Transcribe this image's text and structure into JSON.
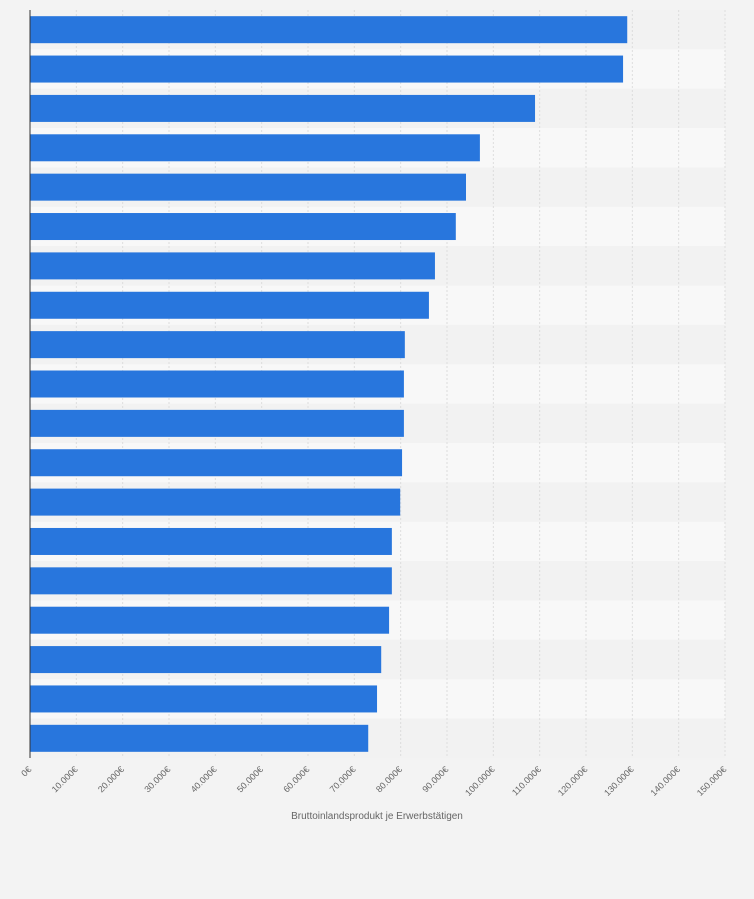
{
  "chart_data": {
    "type": "bar",
    "orientation": "horizontal",
    "title": "",
    "xlabel": "Bruttoinlandsprodukt je Erwerbstätigen",
    "ylabel": "",
    "xlim": [
      0,
      150000
    ],
    "xticks": [
      0,
      10000,
      20000,
      30000,
      40000,
      50000,
      60000,
      70000,
      80000,
      90000,
      100000,
      110000,
      120000,
      130000,
      140000,
      150000
    ],
    "xtick_labels": [
      "0€",
      "10.000€",
      "20.000€",
      "30.000€",
      "40.000€",
      "50.000€",
      "60.000€",
      "70.000€",
      "80.000€",
      "90.000€",
      "100.000€",
      "110.000€",
      "120.000€",
      "130.000€",
      "140.000€",
      "150.000€"
    ],
    "values": [
      128900,
      128000,
      109000,
      97100,
      94100,
      91900,
      87400,
      86100,
      80900,
      80700,
      80700,
      80300,
      79900,
      78100,
      78100,
      77500,
      75800,
      74900,
      73000
    ],
    "grid": true,
    "colors": {
      "bar": "#2876dd",
      "background": "#f3f3f3",
      "band_light": "#f8f8f8",
      "band_dark": "#f2f2f2",
      "grid": "#dddddd"
    }
  }
}
